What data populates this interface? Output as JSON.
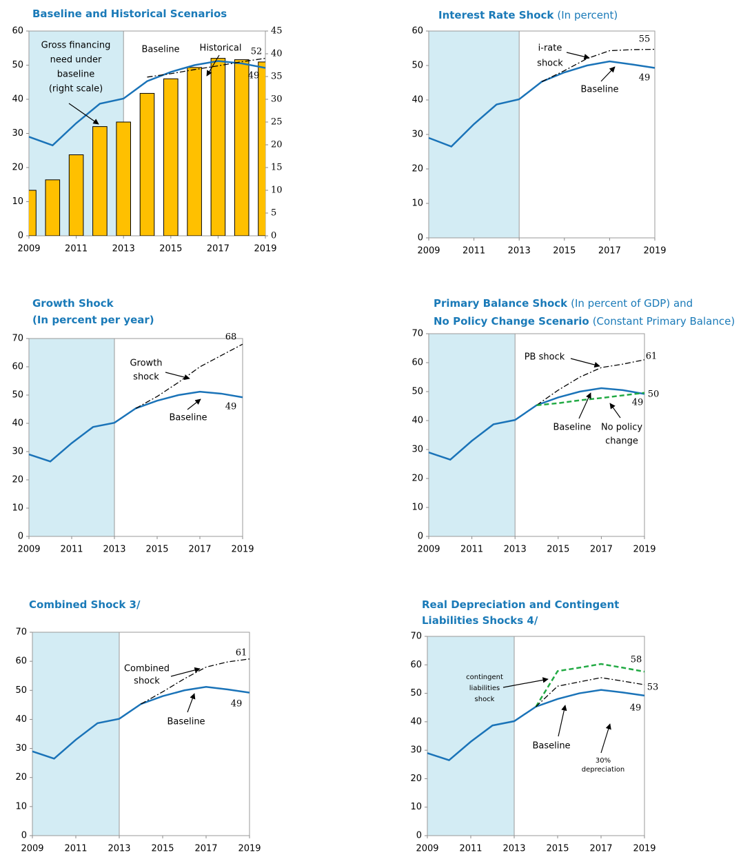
{
  "chart_data": [
    {
      "type": "line",
      "title": "Baseline and Historical Scenarios",
      "x": [
        2009,
        2010,
        2011,
        2012,
        2013,
        2014,
        2015,
        2016,
        2017,
        2018,
        2019
      ],
      "xlim": [
        2009,
        2019
      ],
      "xticks": [
        2009,
        2011,
        2013,
        2015,
        2017,
        2019
      ],
      "ylim": [
        0,
        60
      ],
      "yticks": [
        0,
        10,
        20,
        30,
        40,
        50,
        60
      ],
      "y2lim": [
        0,
        45
      ],
      "y2ticks": [
        0,
        5,
        10,
        15,
        20,
        25,
        30,
        35,
        40,
        45
      ],
      "shade": [
        2009,
        2013
      ],
      "series": [
        {
          "name": "Gross financing need under baseline (right scale)",
          "type": "bar",
          "axis": "y2",
          "color": "#ffc000",
          "values": [
            10,
            12.3,
            17.8,
            24,
            25,
            31.3,
            34.5,
            37,
            39,
            38.7,
            38.2
          ]
        },
        {
          "name": "Baseline",
          "color": "#1a73b8",
          "style": "solid",
          "values": [
            29,
            26.5,
            33,
            38.7,
            40.2,
            45.3,
            48,
            50,
            51.2,
            50.5,
            49.2
          ],
          "value_labels": [
            null,
            null,
            null,
            null,
            null,
            null,
            null,
            null,
            null,
            null,
            "49"
          ]
        },
        {
          "name": "Historical",
          "color": "#000000",
          "style": "dashdot",
          "values": [
            null,
            null,
            null,
            null,
            null,
            46.5,
            47.5,
            48.7,
            49.8,
            51,
            52
          ],
          "value_labels": [
            null,
            null,
            null,
            null,
            null,
            null,
            null,
            null,
            null,
            null,
            "52"
          ]
        }
      ],
      "annotations": [
        [
          "Gross financing",
          "need under",
          "baseline",
          "(right scale)"
        ],
        [
          "Baseline"
        ],
        [
          "Historical"
        ]
      ]
    },
    {
      "type": "line",
      "title": "Interest Rate Shock",
      "subtitle": "(In percent)",
      "x": [
        2009,
        2010,
        2011,
        2012,
        2013,
        2014,
        2015,
        2016,
        2017,
        2018,
        2019
      ],
      "xlim": [
        2009,
        2019
      ],
      "xticks": [
        2009,
        2011,
        2013,
        2015,
        2017,
        2019
      ],
      "ylim": [
        0,
        60
      ],
      "yticks": [
        0,
        10,
        20,
        30,
        40,
        50,
        60
      ],
      "shade": [
        2009,
        2013
      ],
      "series": [
        {
          "name": "Baseline",
          "color": "#1a73b8",
          "style": "solid",
          "values": [
            29,
            26.5,
            33,
            38.7,
            40.2,
            45.3,
            48,
            50,
            51.2,
            50.3,
            49.3
          ],
          "value_labels": [
            null,
            null,
            null,
            null,
            null,
            null,
            null,
            null,
            null,
            null,
            "49"
          ]
        },
        {
          "name": "i-rate shock",
          "color": "#000000",
          "style": "dashdot",
          "values": [
            null,
            null,
            null,
            null,
            null,
            45.3,
            48.5,
            52,
            54.3,
            54.6,
            54.7
          ],
          "value_labels": [
            null,
            null,
            null,
            null,
            null,
            null,
            null,
            null,
            null,
            null,
            "55"
          ]
        }
      ],
      "annotations": [
        [
          "i-rate",
          "shock"
        ],
        [
          "Baseline"
        ]
      ]
    },
    {
      "type": "line",
      "title": "Growth Shock",
      "subtitle": "(In percent per year)",
      "x": [
        2009,
        2010,
        2011,
        2012,
        2013,
        2014,
        2015,
        2016,
        2017,
        2018,
        2019
      ],
      "xlim": [
        2009,
        2019
      ],
      "xticks": [
        2009,
        2011,
        2013,
        2015,
        2017,
        2019
      ],
      "ylim": [
        0,
        70
      ],
      "yticks": [
        0,
        10,
        20,
        30,
        40,
        50,
        60,
        70
      ],
      "shade": [
        2009,
        2013
      ],
      "series": [
        {
          "name": "Baseline",
          "color": "#1a73b8",
          "style": "solid",
          "values": [
            29,
            26.5,
            33,
            38.7,
            40.2,
            45.3,
            48,
            50,
            51.2,
            50.5,
            49.2
          ],
          "value_labels": [
            null,
            null,
            null,
            null,
            null,
            null,
            null,
            null,
            null,
            null,
            "49"
          ]
        },
        {
          "name": "Growth shock",
          "color": "#000000",
          "style": "dashdot",
          "values": [
            null,
            null,
            null,
            null,
            null,
            45.3,
            49.5,
            54.5,
            60,
            64,
            68
          ],
          "value_labels": [
            null,
            null,
            null,
            null,
            null,
            null,
            null,
            null,
            null,
            null,
            "68"
          ]
        }
      ],
      "annotations": [
        [
          "Growth",
          "shock"
        ],
        [
          "Baseline"
        ]
      ]
    },
    {
      "type": "line",
      "title": [
        "Primary Balance Shock",
        "No Policy Change Scenario"
      ],
      "subtitle": [
        "(In percent of GDP) and",
        "(Constant Primary Balance)"
      ],
      "x": [
        2009,
        2010,
        2011,
        2012,
        2013,
        2014,
        2015,
        2016,
        2017,
        2018,
        2019
      ],
      "xlim": [
        2009,
        2019
      ],
      "xticks": [
        2009,
        2011,
        2013,
        2015,
        2017,
        2019
      ],
      "ylim": [
        0,
        70
      ],
      "yticks": [
        0,
        10,
        20,
        30,
        40,
        50,
        60,
        70
      ],
      "shade": [
        2009,
        2013
      ],
      "series": [
        {
          "name": "Baseline",
          "color": "#1a73b8",
          "style": "solid",
          "values": [
            29,
            26.5,
            33,
            38.7,
            40.2,
            45.3,
            48,
            50,
            51.2,
            50.5,
            49.2
          ],
          "value_labels": [
            null,
            null,
            null,
            null,
            null,
            null,
            null,
            null,
            null,
            null,
            "49"
          ]
        },
        {
          "name": "PB shock",
          "color": "#000000",
          "style": "dashdot",
          "values": [
            null,
            null,
            null,
            null,
            null,
            45.3,
            50.5,
            55,
            58.3,
            59.5,
            61
          ],
          "value_labels": [
            null,
            null,
            null,
            null,
            null,
            null,
            null,
            null,
            null,
            null,
            "61"
          ]
        },
        {
          "name": "No policy change",
          "color": "#22aa44",
          "style": "dashed",
          "values": [
            null,
            null,
            null,
            null,
            null,
            45.3,
            46,
            47,
            47.8,
            48.7,
            49.6
          ],
          "value_labels": [
            null,
            null,
            null,
            null,
            null,
            null,
            null,
            null,
            null,
            null,
            "50"
          ]
        }
      ],
      "annotations": [
        [
          "PB shock"
        ],
        [
          "Baseline"
        ],
        [
          "No policy",
          "change"
        ]
      ]
    },
    {
      "type": "line",
      "title": "Combined Shock  3/",
      "x": [
        2009,
        2010,
        2011,
        2012,
        2013,
        2014,
        2015,
        2016,
        2017,
        2018,
        2019
      ],
      "xlim": [
        2009,
        2019
      ],
      "xticks": [
        2009,
        2011,
        2013,
        2015,
        2017,
        2019
      ],
      "ylim": [
        0,
        70
      ],
      "yticks": [
        0,
        10,
        20,
        30,
        40,
        50,
        60,
        70
      ],
      "shade": [
        2009,
        2013
      ],
      "series": [
        {
          "name": "Baseline",
          "color": "#1a73b8",
          "style": "solid",
          "values": [
            29,
            26.5,
            33,
            38.7,
            40.2,
            45.3,
            48,
            50,
            51.2,
            50.3,
            49.2
          ],
          "value_labels": [
            null,
            null,
            null,
            null,
            null,
            null,
            null,
            null,
            null,
            null,
            "49"
          ]
        },
        {
          "name": "Combined shock",
          "color": "#000000",
          "style": "dashdot",
          "values": [
            null,
            null,
            null,
            null,
            null,
            45.3,
            49.5,
            54,
            58,
            59.8,
            60.8
          ],
          "value_labels": [
            null,
            null,
            null,
            null,
            null,
            null,
            null,
            null,
            null,
            null,
            "61"
          ]
        }
      ],
      "annotations": [
        [
          "Combined",
          "shock"
        ],
        [
          "Baseline"
        ]
      ]
    },
    {
      "type": "line",
      "title": [
        "Real Depreciation and Contingent",
        "Liabilities Shocks 4/"
      ],
      "x": [
        2009,
        2010,
        2011,
        2012,
        2013,
        2014,
        2015,
        2016,
        2017,
        2018,
        2019
      ],
      "xlim": [
        2009,
        2019
      ],
      "xticks": [
        2009,
        2011,
        2013,
        2015,
        2017,
        2019
      ],
      "ylim": [
        0,
        70
      ],
      "yticks": [
        0,
        10,
        20,
        30,
        40,
        50,
        60,
        70
      ],
      "shade": [
        2009,
        2013
      ],
      "series": [
        {
          "name": "Baseline",
          "color": "#1a73b8",
          "style": "solid",
          "values": [
            29,
            26.5,
            33,
            38.7,
            40.2,
            45.3,
            48,
            50,
            51.2,
            50.3,
            49.2
          ],
          "value_labels": [
            null,
            null,
            null,
            null,
            null,
            null,
            null,
            null,
            null,
            null,
            "49"
          ]
        },
        {
          "name": "contingent liabilities shock",
          "color": "#22aa44",
          "style": "dashed",
          "values": [
            null,
            null,
            null,
            null,
            null,
            45.3,
            57.8,
            59,
            60.3,
            59,
            57.6
          ],
          "value_labels": [
            null,
            null,
            null,
            null,
            null,
            null,
            null,
            null,
            null,
            null,
            "58"
          ]
        },
        {
          "name": "30% depreciation",
          "color": "#000000",
          "style": "dashdot",
          "values": [
            null,
            null,
            null,
            null,
            null,
            45.3,
            52.5,
            54,
            55.5,
            54.3,
            53
          ],
          "value_labels": [
            null,
            null,
            null,
            null,
            null,
            null,
            null,
            null,
            null,
            null,
            "53"
          ]
        }
      ],
      "annotations": [
        [
          "contingent",
          "liabilities",
          "shock"
        ],
        [
          "Baseline"
        ],
        [
          "30%",
          "depreciation"
        ]
      ]
    }
  ]
}
